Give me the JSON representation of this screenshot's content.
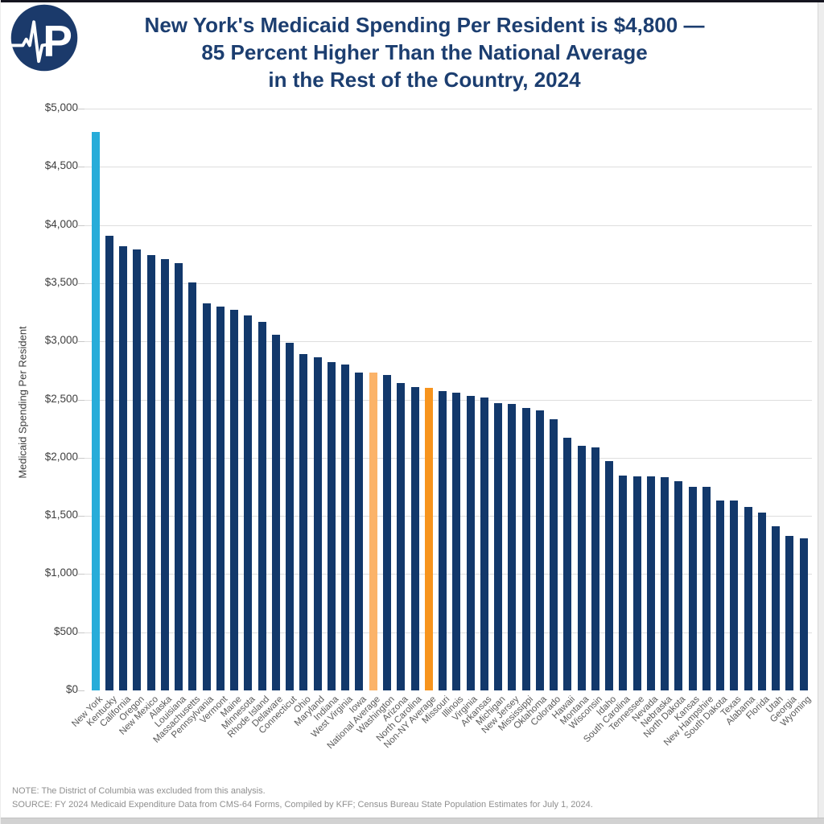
{
  "logo": {
    "letter": "P",
    "circle_color": "#1b3a6b",
    "pulse_color": "#ffffff"
  },
  "title": {
    "line1": "New York's Medicaid Spending Per Resident is $4,800 —",
    "line2": "85 Percent Higher Than the National Average",
    "line3": "in the Rest of the Country, 2024",
    "color": "#1c3e70"
  },
  "chart_data": {
    "type": "bar",
    "title": "New York's Medicaid Spending Per Resident is $4,800 — 85 Percent Higher Than the National Average in the Rest of the Country, 2024",
    "xlabel": "",
    "ylabel": "Medicaid Spending Per Resident",
    "ylim": [
      0,
      5000
    ],
    "ytick_interval": 500,
    "ytick_labels": [
      "$0",
      "$500",
      "$1,000",
      "$1,500",
      "$2,000",
      "$2,500",
      "$3,000",
      "$3,500",
      "$4,000",
      "$4,500",
      "$5,000"
    ],
    "grid": true,
    "legend": "none",
    "categories": [
      "New York",
      "Kentucky",
      "California",
      "Oregon",
      "New Mexico",
      "Alaska",
      "Louisiana",
      "Massachusetts",
      "Pennsylvania",
      "Vermont",
      "Maine",
      "Minnesota",
      "Rhode Island",
      "Delaware",
      "Connecticut",
      "Ohio",
      "Maryland",
      "Indiana",
      "West Virginia",
      "Iowa",
      "National Average",
      "Washington",
      "Arizona",
      "North Carolina",
      "Non-NY Average",
      "Missouri",
      "Illinois",
      "Virginia",
      "Arkansas",
      "Michigan",
      "New Jersey",
      "Mississippi",
      "Oklahoma",
      "Colorado",
      "Hawaii",
      "Montana",
      "Wisconsin",
      "Idaho",
      "South Carolina",
      "Tennessee",
      "Nevada",
      "Nebraska",
      "North Dakota",
      "Kansas",
      "New Hampshire",
      "South Dakota",
      "Texas",
      "Alabama",
      "Florida",
      "Utah",
      "Georgia",
      "Wyoming"
    ],
    "values": [
      4800,
      3910,
      3820,
      3790,
      3740,
      3710,
      3670,
      3510,
      3330,
      3300,
      3270,
      3220,
      3170,
      3060,
      2990,
      2890,
      2860,
      2820,
      2800,
      2730,
      2730,
      2710,
      2640,
      2610,
      2600,
      2570,
      2560,
      2530,
      2520,
      2470,
      2460,
      2430,
      2410,
      2330,
      2170,
      2100,
      2090,
      1970,
      1850,
      1840,
      1840,
      1830,
      1800,
      1750,
      1750,
      1630,
      1630,
      1580,
      1530,
      1410,
      1330,
      1310
    ],
    "bar_color_default": "#12386b",
    "highlight_colors": {
      "New York": "#27acd9",
      "National Average": "#fbb369",
      "Non-NY Average": "#f7941d"
    }
  },
  "notes": {
    "note": "NOTE: The District of Columbia was excluded from this analysis.",
    "source": "SOURCE: FY 2024 Medicaid Expenditure Data from CMS-64 Forms, Compiled by KFF; Census Bureau State Population Estimates for July 1, 2024."
  }
}
